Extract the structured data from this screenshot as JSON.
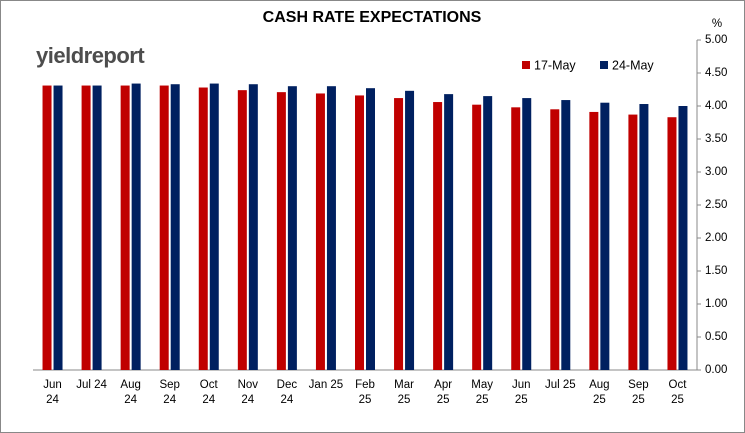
{
  "chart_data": {
    "type": "bar",
    "title": "CASH RATE EXPECTATIONS",
    "logo": "yieldreport",
    "y_unit": "%",
    "categories": [
      "Jun\n24",
      "Jul 24",
      "Aug\n24",
      "Sep\n24",
      "Oct\n24",
      "Nov\n24",
      "Dec\n24",
      "Jan 25",
      "Feb\n25",
      "Mar\n25",
      "Apr\n25",
      "May\n25",
      "Jun\n25",
      "Jul 25",
      "Aug\n25",
      "Sep\n25",
      "Oct\n25"
    ],
    "series": [
      {
        "name": "17-May",
        "color": "#c00000",
        "values": [
          4.31,
          4.31,
          4.31,
          4.31,
          4.28,
          4.24,
          4.21,
          4.19,
          4.16,
          4.12,
          4.06,
          4.02,
          3.98,
          3.95,
          3.91,
          3.87,
          3.83
        ]
      },
      {
        "name": "24-May",
        "color": "#002060",
        "values": [
          4.31,
          4.31,
          4.34,
          4.33,
          4.34,
          4.33,
          4.3,
          4.3,
          4.27,
          4.23,
          4.18,
          4.15,
          4.12,
          4.09,
          4.05,
          4.03,
          4.0
        ]
      }
    ],
    "ylim": [
      0,
      5
    ],
    "yticks": [
      {
        "value": 0,
        "label": "0.00"
      },
      {
        "value": 0.5,
        "label": "0.50"
      },
      {
        "value": 1,
        "label": "1.00"
      },
      {
        "value": 1.5,
        "label": "1.50"
      },
      {
        "value": 2,
        "label": "2.00"
      },
      {
        "value": 2.5,
        "label": "2.50"
      },
      {
        "value": 3,
        "label": "3.00"
      },
      {
        "value": 3.5,
        "label": "3.50"
      },
      {
        "value": 4,
        "label": "4.00"
      },
      {
        "value": 4.5,
        "label": "4.50"
      },
      {
        "value": 5,
        "label": "5.00"
      }
    ],
    "grid": false,
    "legend": "top-right"
  }
}
